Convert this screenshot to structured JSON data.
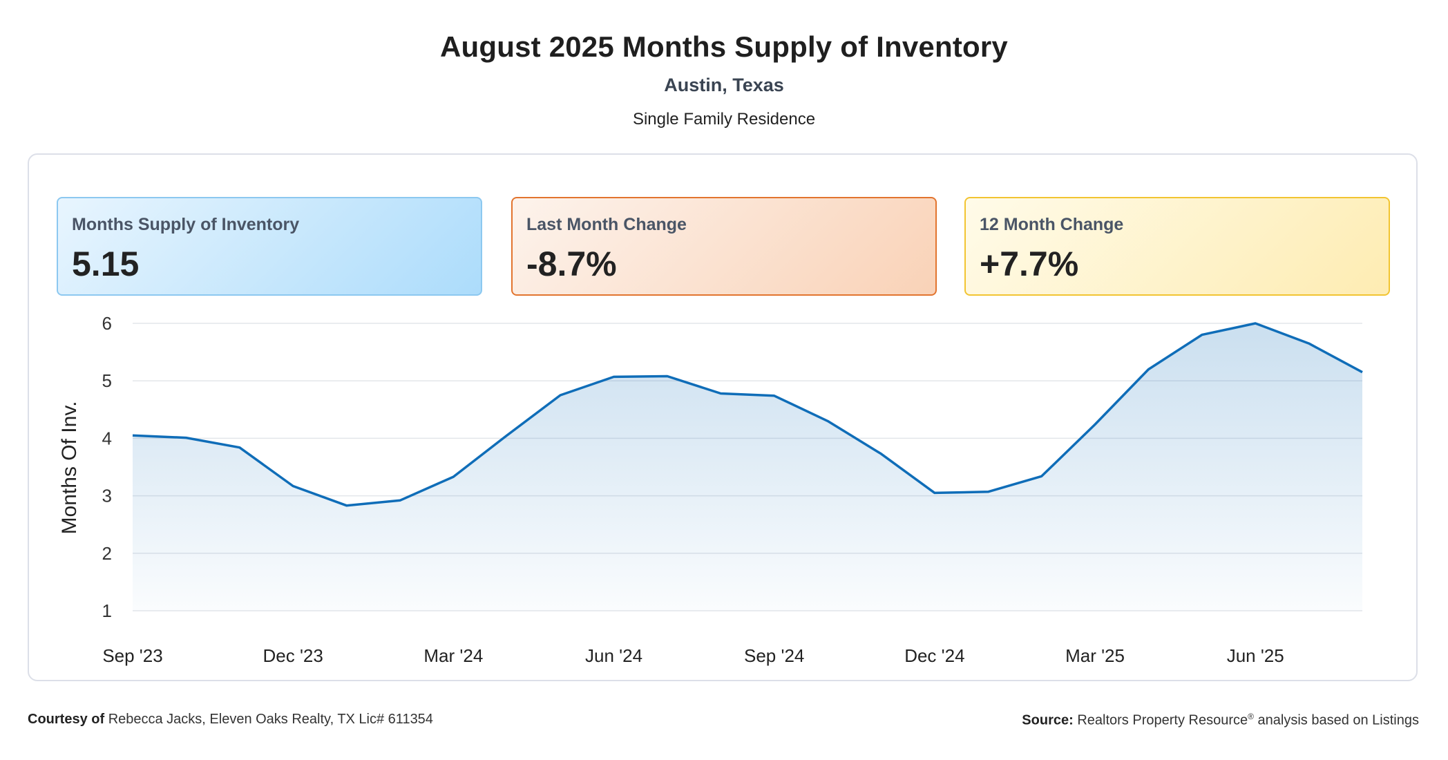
{
  "header": {
    "title": "August 2025 Months Supply of Inventory",
    "location": "Austin, Texas",
    "property_type": "Single Family Residence"
  },
  "cards": [
    {
      "label": "Months Supply of Inventory",
      "value": "5.15",
      "accent": "#8cc8f0"
    },
    {
      "label": "Last Month Change",
      "value": "-8.7%",
      "accent": "#e2742e"
    },
    {
      "label": "12 Month Change",
      "value": "+7.7%",
      "accent": "#f2c431"
    }
  ],
  "chart_data": {
    "type": "area",
    "title": "",
    "xlabel": "",
    "ylabel": "Months Of Inv.",
    "ylim": [
      1,
      6
    ],
    "yticks": [
      1,
      2,
      3,
      4,
      5,
      6
    ],
    "x": [
      "Sep '23",
      "Oct '23",
      "Nov '23",
      "Dec '23",
      "Jan '24",
      "Feb '24",
      "Mar '24",
      "Apr '24",
      "May '24",
      "Jun '24",
      "Jul '24",
      "Aug '24",
      "Sep '24",
      "Oct '24",
      "Nov '24",
      "Dec '24",
      "Jan '25",
      "Feb '25",
      "Mar '25",
      "Apr '25",
      "May '25",
      "Jun '25",
      "Jul '25",
      "Aug '25"
    ],
    "xtick_labels": [
      "Sep '23",
      "Dec '23",
      "Mar '24",
      "Jun '24",
      "Sep '24",
      "Dec '24",
      "Mar '25",
      "Jun '25"
    ],
    "series": [
      {
        "values": [
          4.05,
          4.01,
          3.84,
          3.17,
          2.83,
          2.92,
          3.33,
          4.05,
          4.75,
          5.07,
          5.08,
          4.78,
          4.74,
          4.3,
          3.73,
          3.05,
          3.07,
          3.34,
          4.24,
          5.2,
          5.8,
          6.0,
          5.65,
          5.15
        ],
        "color": "#0f6db8"
      }
    ],
    "grid": true,
    "legend": "none"
  },
  "footer": {
    "courtesy_label": "Courtesy of",
    "courtesy_text": "Rebecca Jacks, Eleven Oaks Realty, TX Lic# 611354",
    "source_label": "Source:",
    "source_text": "Realtors Property Resource",
    "source_mark": "®",
    "source_suffix": "analysis based on Listings"
  }
}
